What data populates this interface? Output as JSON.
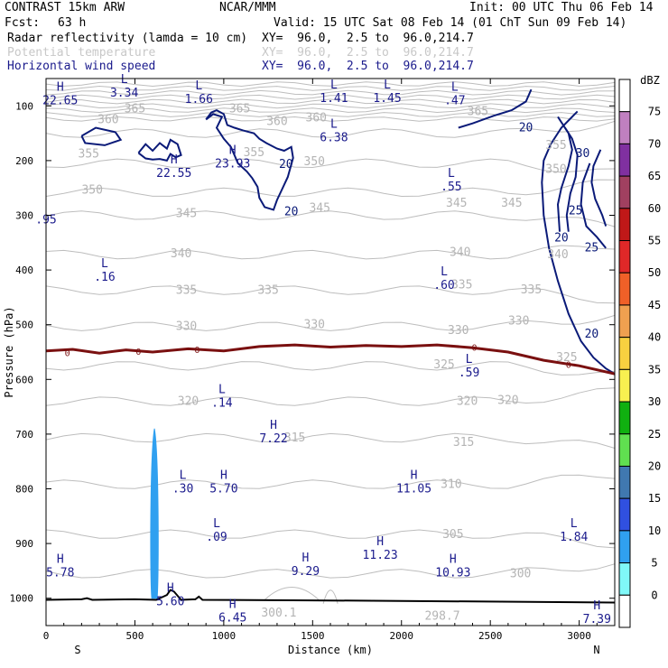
{
  "header": {
    "model": "CONTRAST 15km ARW",
    "center": "NCAR/MMM",
    "init": "Init: 00 UTC Thu 06 Feb 14",
    "fcst_label": "Fcst:",
    "fcst_value": "63 h",
    "valid": "Valid: 15 UTC Sat 08 Feb 14 (01 ChT Sun 09 Feb 14)"
  },
  "fields": [
    {
      "name": "Radar reflectivity (lamda = 10 cm)",
      "xy": "XY=  96.0,  2.5 to  96.0,214.7",
      "color": "#000000"
    },
    {
      "name": "Potential temperature",
      "xy": "XY=  96.0,  2.5 to  96.0,214.7",
      "color": "#c8c8c8"
    },
    {
      "name": "Horizontal wind speed",
      "xy": "XY=  96.0,  2.5 to  96.0,214.7",
      "color": "#1a1a8c"
    }
  ],
  "chart_data": {
    "type": "cross-section",
    "xlabel": "Distance (km)",
    "ylabel": "Pressure (hPa)",
    "xlim": [
      0,
      3200
    ],
    "ylim": [
      1050,
      50
    ],
    "xticks": [
      0,
      500,
      1000,
      1500,
      2000,
      2500,
      3000
    ],
    "yticks": [
      100,
      200,
      300,
      400,
      500,
      600,
      700,
      800,
      900,
      1000
    ],
    "left_end_label": "S",
    "right_end_label": "N",
    "colorbar": {
      "unit": "dBZ",
      "levels": [
        75,
        70,
        65,
        60,
        55,
        50,
        45,
        40,
        35,
        30,
        25,
        20,
        15,
        10,
        5,
        0
      ],
      "colors": [
        "#ffffff",
        "#c080c0",
        "#8030a0",
        "#a04060",
        "#c01818",
        "#e02828",
        "#f06028",
        "#f0a050",
        "#f8d040",
        "#f8f050",
        "#10b010",
        "#60e050",
        "#4078b0",
        "#3050e0",
        "#30a0f0",
        "#80f8f8",
        "#ffffff"
      ]
    },
    "theta_labels": [
      {
        "x": 500,
        "p": 105,
        "v": "365"
      },
      {
        "x": 1090,
        "p": 105,
        "v": "365"
      },
      {
        "x": 2430,
        "p": 110,
        "v": "365"
      },
      {
        "x": 350,
        "p": 125,
        "v": "360"
      },
      {
        "x": 1300,
        "p": 128,
        "v": "360"
      },
      {
        "x": 1520,
        "p": 122,
        "v": "360"
      },
      {
        "x": 1170,
        "p": 185,
        "v": "355"
      },
      {
        "x": 240,
        "p": 188,
        "v": "355"
      },
      {
        "x": 2870,
        "p": 172,
        "v": "355"
      },
      {
        "x": 1510,
        "p": 202,
        "v": "350"
      },
      {
        "x": 260,
        "p": 254,
        "v": "350"
      },
      {
        "x": 2870,
        "p": 216,
        "v": "350"
      },
      {
        "x": 790,
        "p": 297,
        "v": "345"
      },
      {
        "x": 1540,
        "p": 287,
        "v": "345"
      },
      {
        "x": 2310,
        "p": 278,
        "v": "345"
      },
      {
        "x": 2620,
        "p": 278,
        "v": "345"
      },
      {
        "x": 760,
        "p": 370,
        "v": "340"
      },
      {
        "x": 2330,
        "p": 368,
        "v": "340"
      },
      {
        "x": 2880,
        "p": 372,
        "v": "340"
      },
      {
        "x": 790,
        "p": 437,
        "v": "335"
      },
      {
        "x": 1250,
        "p": 437,
        "v": "335"
      },
      {
        "x": 2340,
        "p": 427,
        "v": "335"
      },
      {
        "x": 2730,
        "p": 436,
        "v": "335"
      },
      {
        "x": 790,
        "p": 503,
        "v": "330"
      },
      {
        "x": 1510,
        "p": 500,
        "v": "330"
      },
      {
        "x": 2320,
        "p": 510,
        "v": "330"
      },
      {
        "x": 2660,
        "p": 493,
        "v": "330"
      },
      {
        "x": 2240,
        "p": 573,
        "v": "325"
      },
      {
        "x": 2930,
        "p": 560,
        "v": "325"
      },
      {
        "x": 800,
        "p": 640,
        "v": "320"
      },
      {
        "x": 2370,
        "p": 640,
        "v": "320"
      },
      {
        "x": 2600,
        "p": 638,
        "v": "320"
      },
      {
        "x": 1400,
        "p": 707,
        "v": "315"
      },
      {
        "x": 2350,
        "p": 715,
        "v": "315"
      },
      {
        "x": 2280,
        "p": 792,
        "v": "310"
      },
      {
        "x": 2290,
        "p": 883,
        "v": "305"
      },
      {
        "x": 2670,
        "p": 955,
        "v": "300"
      },
      {
        "x": 1310,
        "p": 1027,
        "v": "300.1"
      },
      {
        "x": 2230,
        "p": 1033,
        "v": "298.7"
      }
    ],
    "wind_labels": [
      {
        "x": 1350,
        "p": 205,
        "v": "20"
      },
      {
        "x": 1380,
        "p": 292,
        "v": "20"
      },
      {
        "x": 2700,
        "p": 138,
        "v": "20"
      },
      {
        "x": 3020,
        "p": 185,
        "v": "30"
      },
      {
        "x": 2980,
        "p": 290,
        "v": "25"
      },
      {
        "x": 2900,
        "p": 340,
        "v": "20"
      },
      {
        "x": 3070,
        "p": 358,
        "v": "25"
      },
      {
        "x": 3070,
        "p": 515,
        "v": "20"
      }
    ],
    "hl_markers": [
      {
        "x": 80,
        "p": 72,
        "t": "H",
        "v": "22.65"
      },
      {
        "x": 440,
        "p": 58,
        "t": "L",
        "v": "3.34"
      },
      {
        "x": 860,
        "p": 70,
        "t": "L",
        "v": "1.66"
      },
      {
        "x": 1620,
        "p": 68,
        "t": "L",
        "v": "1.41"
      },
      {
        "x": 1920,
        "p": 68,
        "t": "L",
        "v": "1.45"
      },
      {
        "x": 2300,
        "p": 72,
        "t": "L",
        "v": "0.47",
        "label": ".47"
      },
      {
        "x": 1620,
        "p": 140,
        "t": "L",
        "v": "6.38"
      },
      {
        "x": 1050,
        "p": 188,
        "t": "H",
        "v": "23.93"
      },
      {
        "x": 720,
        "p": 205,
        "t": "H",
        "v": "22.55"
      },
      {
        "x": 2280,
        "p": 230,
        "t": "L",
        "v": "0.55",
        "label": ".55"
      },
      {
        "x": 0,
        "p": 290,
        "t": "",
        "v": "0.95",
        "label": ".95"
      },
      {
        "x": 330,
        "p": 395,
        "t": "L",
        "v": "0.16",
        "label": ".16"
      },
      {
        "x": 2240,
        "p": 410,
        "t": "L",
        "v": "0.60",
        "label": ".60"
      },
      {
        "x": 2380,
        "p": 570,
        "t": "L",
        "v": "0.59",
        "label": ".59"
      },
      {
        "x": 990,
        "p": 625,
        "t": "L",
        "v": "0.14",
        "label": ".14"
      },
      {
        "x": 1280,
        "p": 690,
        "t": "H",
        "v": "7.22"
      },
      {
        "x": 770,
        "p": 782,
        "t": "L",
        "v": "0.30",
        "label": ".30"
      },
      {
        "x": 1000,
        "p": 782,
        "t": "H",
        "v": "5.70"
      },
      {
        "x": 2070,
        "p": 782,
        "t": "H",
        "v": "11.05"
      },
      {
        "x": 960,
        "p": 870,
        "t": "L",
        "v": "0.09",
        "label": ".09"
      },
      {
        "x": 2970,
        "p": 870,
        "t": "L",
        "v": "1.84"
      },
      {
        "x": 80,
        "p": 935,
        "t": "H",
        "v": "5.78"
      },
      {
        "x": 1880,
        "p": 903,
        "t": "H",
        "v": "11.23"
      },
      {
        "x": 1460,
        "p": 933,
        "t": "H",
        "v": "9.29"
      },
      {
        "x": 2290,
        "p": 935,
        "t": "H",
        "v": "10.93"
      },
      {
        "x": 700,
        "p": 988,
        "t": "H",
        "v": "5.60"
      },
      {
        "x": 1050,
        "p": 1018,
        "t": "H",
        "v": "6.45"
      },
      {
        "x": 3100,
        "p": 1020,
        "t": "H",
        "v": "7.39"
      }
    ],
    "freezing_level_label": "0",
    "freezing_level": [
      [
        0,
        548
      ],
      [
        150,
        545
      ],
      [
        300,
        552
      ],
      [
        450,
        546
      ],
      [
        600,
        550
      ],
      [
        800,
        544
      ],
      [
        1000,
        548
      ],
      [
        1200,
        540
      ],
      [
        1400,
        537
      ],
      [
        1600,
        541
      ],
      [
        1800,
        538
      ],
      [
        2000,
        540
      ],
      [
        2200,
        537
      ],
      [
        2400,
        542
      ],
      [
        2600,
        550
      ],
      [
        2800,
        565
      ],
      [
        3000,
        575
      ],
      [
        3200,
        590
      ]
    ],
    "reflectivity_cells": [
      {
        "dbz": 10,
        "x_center": 610,
        "p_top": 690,
        "p_bottom": 1000,
        "width_km": 50
      }
    ],
    "ground": [
      [
        0,
        1003
      ],
      [
        200,
        1002
      ],
      [
        230,
        1000
      ],
      [
        260,
        1003
      ],
      [
        500,
        1002
      ],
      [
        620,
        1003
      ],
      [
        680,
        994
      ],
      [
        700,
        985
      ],
      [
        720,
        988
      ],
      [
        760,
        1003
      ],
      [
        840,
        1002
      ],
      [
        860,
        997
      ],
      [
        880,
        1003
      ],
      [
        1500,
        1004
      ],
      [
        2000,
        1005
      ],
      [
        2800,
        1007
      ],
      [
        3200,
        1008
      ]
    ]
  }
}
